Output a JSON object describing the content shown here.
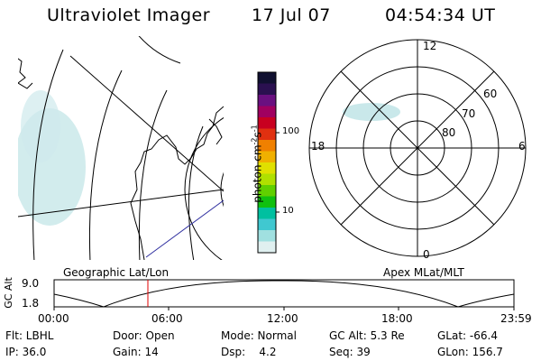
{
  "header": {
    "title": "Ultraviolet Imager",
    "date": "17 Jul 07",
    "time": "04:54:34 UT"
  },
  "colorbar": {
    "label": "photon cm",
    "label_exp1": "-2",
    "label_s": "s",
    "label_exp2": "-1",
    "tick_high": "100",
    "tick_low": "10",
    "colors": [
      "#101030",
      "#2a1050",
      "#6a1080",
      "#a00060",
      "#c80020",
      "#e03010",
      "#f08000",
      "#f0b000",
      "#e0e000",
      "#b0e000",
      "#60d000",
      "#10c010",
      "#00c0a0",
      "#40c8d0",
      "#a0e0e0",
      "#e0f0f0"
    ]
  },
  "panels": {
    "left_caption": "Geographic Lat/Lon",
    "right_caption": "Apex MLat/MLT"
  },
  "polar": {
    "top": "12",
    "bottom": "0",
    "left": "18",
    "right": "6",
    "lat_labels": [
      "60",
      "70",
      "80"
    ]
  },
  "timeline": {
    "axis_label": "GC Alt",
    "y_top": "9.0",
    "y_bottom": "1.8",
    "x_ticks": [
      "00:00",
      "06:00",
      "12:00",
      "18:00",
      "23:59"
    ],
    "marker_time": "04:54"
  },
  "info": {
    "flt": "Flt: LBHL",
    "ip": "IP: 36.0",
    "door": "Door: Open",
    "gain": "Gain: 14",
    "mode": "Mode: Normal",
    "dsp": "Dsp:    4.2",
    "gc_alt": "GC Alt: 5.3 Re",
    "seq": "Seq: 39",
    "glat": "GLat: -66.4",
    "glon": "GLon: 156.7"
  }
}
